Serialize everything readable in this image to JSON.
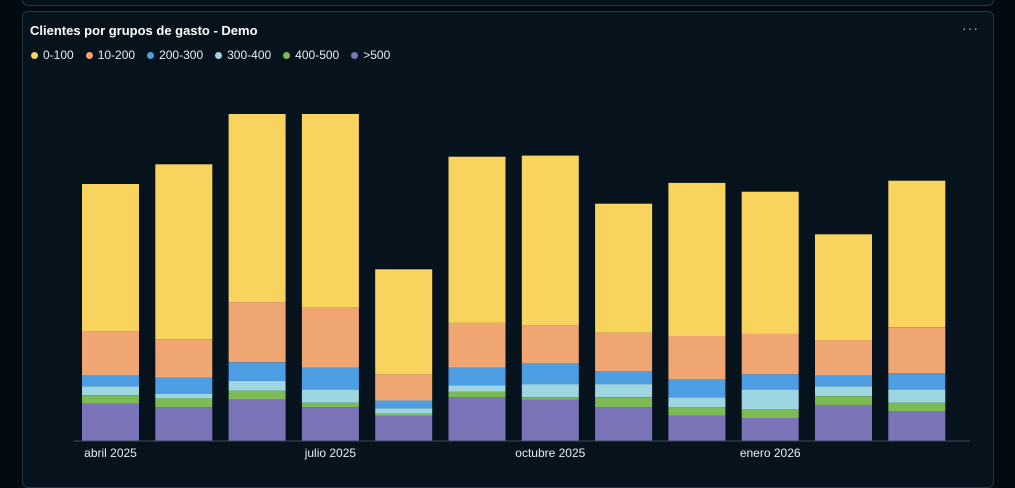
{
  "card": {
    "title": "Clientes por grupos de gasto - Demo",
    "menu_label": "···"
  },
  "chart_data": {
    "type": "bar",
    "stacked": true,
    "title": "Clientes por grupos de gasto - Demo",
    "legend_position": "top-left",
    "grid": false,
    "categories": [
      "2025-04",
      "2025-05",
      "2025-06",
      "2025-07",
      "2025-08",
      "2025-09",
      "2025-10",
      "2025-11",
      "2025-12",
      "2026-01",
      "2026-02",
      "2026-03"
    ],
    "x_tick_labels": [
      {
        "category": "2025-04",
        "label": "abril 2025"
      },
      {
        "category": "2025-07",
        "label": "julio 2025"
      },
      {
        "category": "2025-10",
        "label": "octubre 2025"
      },
      {
        "category": "2026-01",
        "label": "enero 2026"
      }
    ],
    "ylim": [
      0,
      300
    ],
    "series": [
      {
        "name": ">500",
        "color": "#7b74b8",
        "values": [
          34,
          31,
          38,
          31,
          23,
          40,
          38,
          31,
          23,
          21,
          33,
          27
        ]
      },
      {
        "name": "400-500",
        "color": "#7cba54",
        "values": [
          8,
          8,
          8,
          4,
          2,
          5,
          2,
          9,
          8,
          8,
          8,
          8
        ]
      },
      {
        "name": "300-400",
        "color": "#9dd6e0",
        "values": [
          8,
          4,
          9,
          12,
          5,
          6,
          12,
          12,
          9,
          18,
          9,
          12
        ]
      },
      {
        "name": "200-300",
        "color": "#4d9ee3",
        "values": [
          10,
          15,
          17,
          20,
          7,
          16,
          19,
          12,
          16,
          14,
          10,
          15
        ]
      },
      {
        "name": "10-200",
        "color": "#f0a673",
        "values": [
          40,
          35,
          55,
          55,
          24,
          41,
          35,
          35,
          40,
          37,
          32,
          42
        ]
      },
      {
        "name": "0-100",
        "color": "#f8d35e",
        "values": [
          135,
          160,
          172,
          177,
          96,
          152,
          155,
          118,
          140,
          130,
          97,
          134
        ]
      }
    ]
  },
  "legend_order": [
    "0-100",
    "10-200",
    "200-300",
    "300-400",
    "400-500",
    ">500"
  ]
}
